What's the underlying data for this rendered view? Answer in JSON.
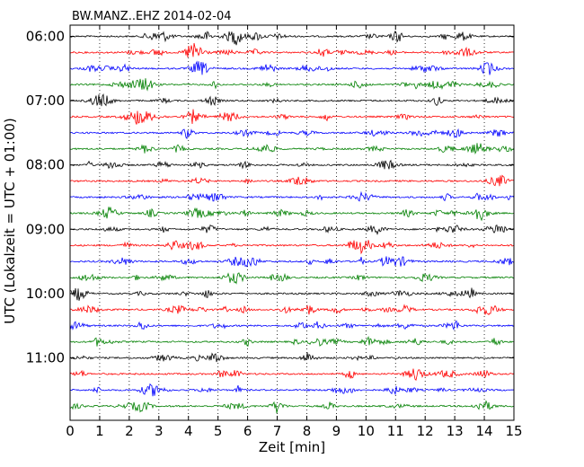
{
  "chart_data": {
    "type": "line",
    "title": "BW.MANZ..EHZ 2014-02-04",
    "xlabel": "Zeit  [min]",
    "ylabel": "UTC (Lokalzeit = UTC + 01:00)",
    "xlim": [
      0,
      15
    ],
    "x_ticks": [
      "0",
      "1",
      "2",
      "3",
      "4",
      "5",
      "6",
      "7",
      "8",
      "9",
      "10",
      "11",
      "12",
      "13",
      "14",
      "15"
    ],
    "y_ticks": [
      "06:00",
      "07:00",
      "08:00",
      "09:00",
      "10:00",
      "11:00"
    ],
    "grid": "vertical dotted",
    "trace_interval_min": 15,
    "trace_count": 24,
    "trace_start": "06:00",
    "trace_colors": [
      "#000000",
      "#ff0000",
      "#0000ff",
      "#008000"
    ]
  }
}
